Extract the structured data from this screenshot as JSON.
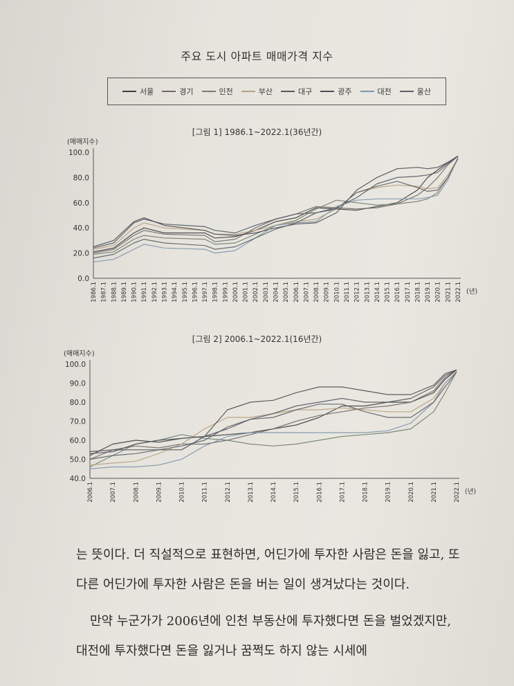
{
  "page_title": "주요 도시 아파트 매매가격 지수",
  "legend": [
    {
      "name": "서울",
      "color": "#3c3c3c"
    },
    {
      "name": "경기",
      "color": "#6f6768"
    },
    {
      "name": "인천",
      "color": "#70806b"
    },
    {
      "name": "부산",
      "color": "#b8a17e"
    },
    {
      "name": "대구",
      "color": "#505860"
    },
    {
      "name": "광주",
      "color": "#4c4c52"
    },
    {
      "name": "대전",
      "color": "#7d95aa"
    },
    {
      "name": "울산",
      "color": "#5b5e65"
    }
  ],
  "chart_data": [
    {
      "type": "line",
      "title": "[그림 1]  1986.1~2022.1(36년간)",
      "ylabel": "(매매지수)",
      "xunit": "(년)",
      "ylim": [
        0,
        100
      ],
      "yticks": [
        "100.0",
        "80.0",
        "60.0",
        "40.0",
        "20.0",
        "0.0"
      ],
      "xlim": [
        1986,
        2022
      ],
      "x_labels": [
        "1986.1",
        "1987.1",
        "1988.1",
        "1989.1",
        "1990.1",
        "1991.1",
        "1992.1",
        "1993.1",
        "1994.1",
        "1995.1",
        "1996.1",
        "1997.1",
        "1998.1",
        "1999.1",
        "2000.1",
        "2001.1",
        "2002.1",
        "2003.1",
        "2004.1",
        "2005.1",
        "2006.1",
        "2007.1",
        "2008.1",
        "2009.1",
        "2010.1",
        "2011.1",
        "2012.1",
        "2013.1",
        "2014.1",
        "2015.1",
        "2016.1",
        "2017.1",
        "2018.1",
        "2019.1",
        "2020.1",
        "2021.1",
        "2022.1"
      ],
      "x": [
        1986,
        1988,
        1990,
        1991,
        1993,
        1997,
        1998,
        2000,
        2002,
        2004,
        2006,
        2008,
        2010,
        2012,
        2014,
        2016,
        2018,
        2019,
        2020,
        2021,
        2022
      ],
      "series": [
        {
          "name": "서울",
          "values": [
            21,
            24,
            36,
            40,
            36,
            36,
            32,
            33,
            38,
            45,
            48,
            56,
            55,
            54,
            57,
            60,
            70,
            80,
            86,
            92,
            97
          ]
        },
        {
          "name": "경기",
          "values": [
            20,
            23,
            34,
            38,
            35,
            34,
            29,
            31,
            40,
            47,
            51,
            57,
            56,
            55,
            56,
            59,
            66,
            72,
            80,
            90,
            97
          ]
        },
        {
          "name": "인천",
          "values": [
            19,
            21,
            31,
            34,
            32,
            31,
            27,
            28,
            35,
            42,
            46,
            55,
            62,
            60,
            58,
            59,
            61,
            63,
            68,
            80,
            95
          ]
        },
        {
          "name": "부산",
          "values": [
            23,
            26,
            40,
            44,
            40,
            38,
            35,
            35,
            38,
            42,
            45,
            47,
            55,
            68,
            72,
            74,
            73,
            71,
            72,
            82,
            95
          ]
        },
        {
          "name": "대구",
          "values": [
            24,
            28,
            44,
            47,
            43,
            41,
            38,
            36,
            42,
            47,
            51,
            52,
            56,
            64,
            75,
            80,
            81,
            82,
            84,
            91,
            97
          ]
        },
        {
          "name": "광주",
          "values": [
            25,
            30,
            45,
            48,
            42,
            38,
            35,
            34,
            36,
            40,
            43,
            44,
            52,
            70,
            80,
            87,
            88,
            87,
            88,
            92,
            97
          ]
        },
        {
          "name": "대전",
          "values": [
            13,
            15,
            23,
            27,
            24,
            23,
            20,
            22,
            32,
            42,
            44,
            45,
            57,
            62,
            63,
            63,
            63,
            64,
            66,
            78,
            96
          ]
        },
        {
          "name": "울산",
          "values": [
            16,
            19,
            28,
            31,
            28,
            26,
            23,
            25,
            32,
            39,
            44,
            52,
            55,
            68,
            73,
            77,
            72,
            69,
            70,
            80,
            95
          ]
        }
      ]
    },
    {
      "type": "line",
      "title": "[그림 2]  2006.1~2022.1(16년간)",
      "ylabel": "(매매지수)",
      "xunit": "(년)",
      "ylim": [
        40,
        100
      ],
      "yticks": [
        "100.0",
        "90.0",
        "80.0",
        "70.0",
        "60.0",
        "50.0",
        "40.0"
      ],
      "xlim": [
        2006,
        2022
      ],
      "x_labels": [
        "2006.1",
        "2007.1",
        "2008.1",
        "2009.1",
        "2010.1",
        "2011.1",
        "2012.1",
        "2013.1",
        "2014.1",
        "2015.1",
        "2016.1",
        "2017.1",
        "2018.1",
        "2019.1",
        "2020.1",
        "2021.1",
        "2022.1"
      ],
      "x": [
        2006,
        2007,
        2008,
        2009,
        2010,
        2011,
        2012,
        2013,
        2014,
        2015,
        2016,
        2017,
        2018,
        2019,
        2020,
        2021,
        2021.5,
        2022
      ],
      "series": [
        {
          "name": "서울",
          "values": [
            52,
            58,
            60,
            59,
            61,
            62,
            63,
            64,
            66,
            68,
            72,
            78,
            78,
            80,
            80,
            85,
            92,
            97
          ]
        },
        {
          "name": "경기",
          "values": [
            50,
            55,
            57,
            56,
            58,
            58,
            60,
            63,
            66,
            70,
            73,
            75,
            77,
            78,
            80,
            86,
            93,
            97
          ]
        },
        {
          "name": "인천",
          "values": [
            46,
            52,
            58,
            60,
            63,
            61,
            60,
            58,
            57,
            58,
            60,
            62,
            63,
            64,
            66,
            75,
            85,
            96
          ]
        },
        {
          "name": "부산",
          "values": [
            47,
            48,
            49,
            53,
            58,
            66,
            72,
            72,
            74,
            76,
            76,
            77,
            76,
            75,
            75,
            82,
            90,
            96
          ]
        },
        {
          "name": "대구",
          "values": [
            53,
            54,
            58,
            60,
            61,
            62,
            66,
            71,
            74,
            78,
            80,
            82,
            80,
            80,
            82,
            88,
            94,
            97
          ]
        },
        {
          "name": "광주",
          "values": [
            54,
            55,
            55,
            55,
            55,
            62,
            76,
            80,
            81,
            85,
            88,
            88,
            86,
            84,
            84,
            89,
            95,
            97
          ]
        },
        {
          "name": "대전",
          "values": [
            45,
            46,
            46,
            47,
            50,
            57,
            62,
            64,
            64,
            64,
            64,
            64,
            64,
            65,
            69,
            80,
            90,
            96
          ]
        },
        {
          "name": "울산",
          "values": [
            50,
            52,
            53,
            55,
            57,
            60,
            67,
            71,
            72,
            76,
            79,
            79,
            75,
            72,
            72,
            80,
            88,
            96
          ]
        }
      ]
    }
  ],
  "body": {
    "paragraph1": "는 뜻이다. 더 직설적으로 표현하면, 어딘가에 투자한 사람은 돈을 잃고, 또 다른 어딘가에 투자한 사람은 돈을 버는 일이 생겨났다는 것이다.",
    "paragraph2": "만약 누군가가 2006년에 인천 부동산에 투자했다면 돈을 벌었겠지만, 대전에 투자했다면 돈을 잃거나 꿈쩍도 하지 않는 시세에"
  }
}
